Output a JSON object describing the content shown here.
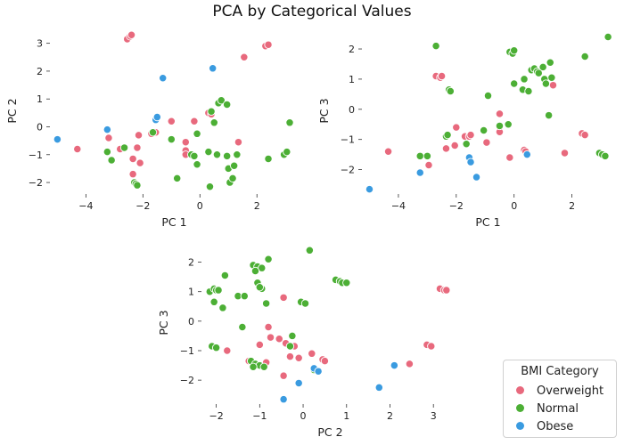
{
  "chart_data": {
    "title": "PCA by Categorical Values",
    "legend": {
      "title": "BMI Category",
      "placement": "lower-right",
      "entries": [
        {
          "name": "Overweight",
          "color": "#e8697d"
        },
        {
          "name": "Normal",
          "color": "#4caf35"
        },
        {
          "name": "Obese",
          "color": "#3a9be0"
        }
      ]
    },
    "panels": [
      {
        "type": "scatter",
        "xlabel": "PC 1",
        "ylabel": "PC 2",
        "xlim": [
          -5.2,
          3.4
        ],
        "ylim": [
          -2.35,
          3.5
        ],
        "xticks": [
          -4,
          -2,
          0,
          2
        ],
        "yticks": [
          -2,
          -1,
          0,
          1,
          2,
          3
        ],
        "series": [
          {
            "name": "Overweight",
            "points": [
              [
                -2.55,
                3.15
              ],
              [
                -2.45,
                3.25
              ],
              [
                -2.4,
                3.3
              ],
              [
                2.3,
                2.9
              ],
              [
                2.4,
                2.95
              ],
              [
                1.55,
                2.5
              ],
              [
                -4.3,
                -0.8
              ],
              [
                -3.2,
                -0.4
              ],
              [
                -2.8,
                -0.8
              ],
              [
                -2.35,
                -1.15
              ],
              [
                -2.15,
                -0.3
              ],
              [
                -2.2,
                -0.75
              ],
              [
                -2.1,
                -1.3
              ],
              [
                -1.7,
                -0.25
              ],
              [
                -1.55,
                -0.2
              ],
              [
                -1.0,
                0.2
              ],
              [
                -0.5,
                -0.55
              ],
              [
                -0.5,
                -0.85
              ],
              [
                -0.5,
                -1.0
              ],
              [
                -0.2,
                0.2
              ],
              [
                0.3,
                0.5
              ],
              [
                0.4,
                0.45
              ],
              [
                1.35,
                -0.55
              ],
              [
                -2.35,
                -1.7
              ]
            ]
          },
          {
            "name": "Normal",
            "points": [
              [
                -3.25,
                -0.9
              ],
              [
                -3.1,
                -1.2
              ],
              [
                -2.65,
                -0.75
              ],
              [
                -2.3,
                -2.0
              ],
              [
                -2.25,
                -2.05
              ],
              [
                -2.2,
                -2.1
              ],
              [
                -1.65,
                -0.2
              ],
              [
                -1.0,
                -0.45
              ],
              [
                -0.8,
                -1.85
              ],
              [
                -0.3,
                -1.0
              ],
              [
                -0.2,
                -1.05
              ],
              [
                -0.1,
                -1.35
              ],
              [
                -0.1,
                -0.25
              ],
              [
                0.3,
                -0.9
              ],
              [
                0.35,
                -2.15
              ],
              [
                0.5,
                0.15
              ],
              [
                0.6,
                -1.0
              ],
              [
                0.65,
                0.85
              ],
              [
                0.75,
                0.95
              ],
              [
                0.95,
                -1.05
              ],
              [
                0.95,
                0.8
              ],
              [
                1.0,
                -1.5
              ],
              [
                1.05,
                -2.0
              ],
              [
                1.15,
                -1.85
              ],
              [
                1.2,
                -1.4
              ],
              [
                1.3,
                -1.0
              ],
              [
                2.4,
                -1.15
              ],
              [
                2.95,
                -1.0
              ],
              [
                3.05,
                -0.9
              ],
              [
                3.15,
                0.15
              ],
              [
                0.4,
                0.55
              ]
            ]
          },
          {
            "name": "Obese",
            "points": [
              [
                -5.0,
                -0.45
              ],
              [
                -3.25,
                -0.1
              ],
              [
                -1.55,
                0.25
              ],
              [
                -1.5,
                0.35
              ],
              [
                -1.3,
                1.75
              ],
              [
                0.45,
                2.1
              ]
            ]
          }
        ]
      },
      {
        "type": "scatter",
        "xlabel": "PC 1",
        "ylabel": "PC 3",
        "xlim": [
          -5.2,
          3.4
        ],
        "ylim": [
          -2.75,
          2.65
        ],
        "xticks": [
          -4,
          -2,
          0,
          2
        ],
        "yticks": [
          -2,
          -1,
          0,
          1,
          2
        ],
        "series": [
          {
            "name": "Overweight",
            "points": [
              [
                -2.7,
                1.1
              ],
              [
                -2.55,
                1.05
              ],
              [
                -2.5,
                1.1
              ],
              [
                -4.35,
                -1.4
              ],
              [
                -2.95,
                -1.85
              ],
              [
                -2.35,
                -1.3
              ],
              [
                -2.05,
                -1.2
              ],
              [
                -2.0,
                -0.6
              ],
              [
                -1.7,
                -0.9
              ],
              [
                -1.55,
                -0.9
              ],
              [
                -1.5,
                -0.85
              ],
              [
                -0.95,
                -1.1
              ],
              [
                -0.5,
                -0.15
              ],
              [
                -0.5,
                -0.6
              ],
              [
                -0.5,
                -0.75
              ],
              [
                -0.15,
                -1.6
              ],
              [
                0.35,
                -1.35
              ],
              [
                1.35,
                0.8
              ],
              [
                1.75,
                -1.45
              ],
              [
                2.35,
                -0.8
              ],
              [
                2.45,
                -0.85
              ],
              [
                0.4,
                -1.4
              ]
            ]
          },
          {
            "name": "Normal",
            "points": [
              [
                -2.7,
                2.1
              ],
              [
                -3.25,
                -1.55
              ],
              [
                -3.0,
                -1.55
              ],
              [
                -2.35,
                -0.9
              ],
              [
                -2.3,
                -0.85
              ],
              [
                -2.25,
                0.65
              ],
              [
                -2.2,
                0.6
              ],
              [
                -1.65,
                -1.15
              ],
              [
                -1.05,
                -0.7
              ],
              [
                -0.9,
                0.45
              ],
              [
                -0.5,
                -0.55
              ],
              [
                -0.2,
                -0.5
              ],
              [
                -0.15,
                1.9
              ],
              [
                -0.05,
                1.85
              ],
              [
                0.0,
                1.95
              ],
              [
                0.0,
                0.85
              ],
              [
                0.3,
                0.65
              ],
              [
                0.35,
                1.0
              ],
              [
                0.5,
                0.6
              ],
              [
                0.6,
                1.3
              ],
              [
                0.7,
                1.35
              ],
              [
                0.8,
                1.25
              ],
              [
                0.85,
                1.2
              ],
              [
                1.0,
                1.4
              ],
              [
                1.05,
                1.0
              ],
              [
                1.1,
                0.85
              ],
              [
                1.25,
                1.55
              ],
              [
                1.3,
                1.05
              ],
              [
                1.2,
                -0.2
              ],
              [
                2.45,
                1.75
              ],
              [
                2.95,
                -1.45
              ],
              [
                3.05,
                -1.5
              ],
              [
                3.15,
                -1.55
              ],
              [
                3.25,
                2.4
              ]
            ]
          },
          {
            "name": "Obese",
            "points": [
              [
                -5.0,
                -2.65
              ],
              [
                -3.25,
                -2.1
              ],
              [
                -1.55,
                -1.6
              ],
              [
                -1.5,
                -1.75
              ],
              [
                -1.3,
                -2.25
              ],
              [
                0.45,
                -1.5
              ]
            ]
          }
        ]
      },
      {
        "type": "scatter",
        "xlabel": "PC 2",
        "ylabel": "PC 3",
        "xlim": [
          -2.3,
          3.55
        ],
        "ylim": [
          -2.75,
          2.65
        ],
        "xticks": [
          -2,
          -1,
          0,
          1,
          2,
          3
        ],
        "yticks": [
          -2,
          -1,
          0,
          1,
          2
        ],
        "series": [
          {
            "name": "Overweight",
            "points": [
              [
                3.15,
                1.1
              ],
              [
                3.25,
                1.05
              ],
              [
                3.3,
                1.05
              ],
              [
                2.85,
                -0.8
              ],
              [
                2.95,
                -0.85
              ],
              [
                -1.75,
                -1.0
              ],
              [
                -1.25,
                -1.35
              ],
              [
                -1.0,
                -0.8
              ],
              [
                -0.85,
                -1.4
              ],
              [
                -0.8,
                -0.2
              ],
              [
                -0.75,
                -0.55
              ],
              [
                -0.55,
                -0.6
              ],
              [
                -0.45,
                0.8
              ],
              [
                -0.45,
                -1.85
              ],
              [
                -0.4,
                -0.75
              ],
              [
                -0.3,
                -1.2
              ],
              [
                -0.25,
                -0.85
              ],
              [
                -0.2,
                -0.85
              ],
              [
                -0.1,
                -1.25
              ],
              [
                0.2,
                -1.1
              ],
              [
                0.25,
                -1.6
              ],
              [
                0.45,
                -1.3
              ],
              [
                0.5,
                -1.35
              ],
              [
                2.45,
                -1.45
              ]
            ]
          },
          {
            "name": "Normal",
            "points": [
              [
                -2.15,
                1.0
              ],
              [
                -2.05,
                1.1
              ],
              [
                -2.0,
                1.05
              ],
              [
                -1.95,
                1.05
              ],
              [
                -2.05,
                0.65
              ],
              [
                -1.85,
                0.45
              ],
              [
                -2.1,
                -0.85
              ],
              [
                -2.0,
                -0.9
              ],
              [
                -1.8,
                1.55
              ],
              [
                -1.5,
                0.85
              ],
              [
                -1.35,
                0.85
              ],
              [
                -1.4,
                -0.2
              ],
              [
                -1.2,
                -1.35
              ],
              [
                -1.1,
                -1.45
              ],
              [
                -1.0,
                -1.5
              ],
              [
                -0.9,
                -1.55
              ],
              [
                -1.15,
                1.9
              ],
              [
                -1.05,
                1.85
              ],
              [
                -0.95,
                1.8
              ],
              [
                -1.1,
                1.7
              ],
              [
                -0.8,
                2.1
              ],
              [
                -1.05,
                1.3
              ],
              [
                -0.95,
                1.1
              ],
              [
                -0.85,
                0.6
              ],
              [
                -1.0,
                1.15
              ],
              [
                -0.25,
                -0.5
              ],
              [
                -0.3,
                -0.85
              ],
              [
                -0.05,
                0.65
              ],
              [
                0.05,
                0.6
              ],
              [
                0.15,
                2.4
              ],
              [
                0.25,
                -1.65
              ],
              [
                0.75,
                1.4
              ],
              [
                0.85,
                1.35
              ],
              [
                0.9,
                1.3
              ],
              [
                1.0,
                1.3
              ],
              [
                -1.15,
                -1.55
              ]
            ]
          },
          {
            "name": "Obese",
            "points": [
              [
                -0.45,
                -2.65
              ],
              [
                -0.1,
                -2.1
              ],
              [
                0.25,
                -1.6
              ],
              [
                0.35,
                -1.7
              ],
              [
                1.75,
                -2.25
              ],
              [
                2.1,
                -1.5
              ]
            ]
          }
        ]
      }
    ]
  }
}
